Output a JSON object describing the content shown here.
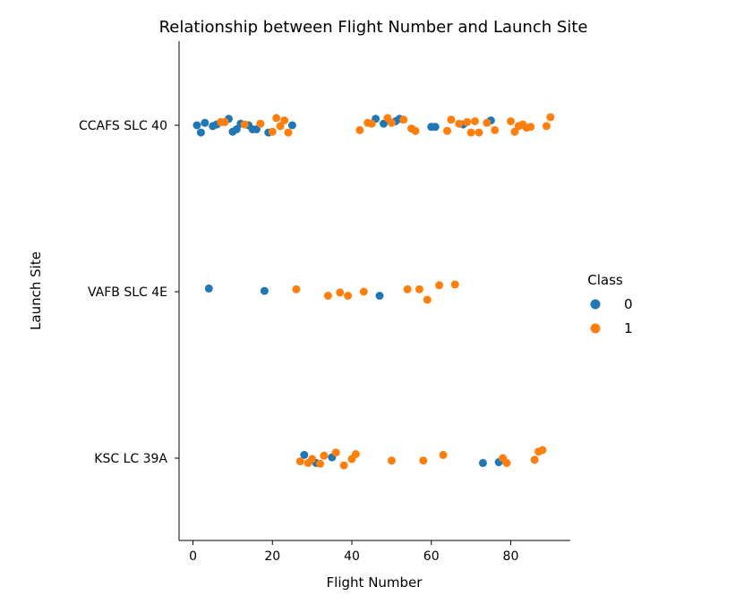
{
  "chart_data": {
    "type": "scatter",
    "title": "Relationship between Flight Number and Launch Site",
    "xlabel": "Flight Number",
    "ylabel": "Launch Site",
    "xlim": [
      -3.5,
      95
    ],
    "xticks": [
      0,
      20,
      40,
      60,
      80
    ],
    "categories": [
      "CCAFS SLC 40",
      "VAFB SLC 4E",
      "KSC LC 39A"
    ],
    "legend": {
      "title": "Class",
      "placement": "right",
      "entries": [
        {
          "label": "0",
          "color": "#1f77b4"
        },
        {
          "label": "1",
          "color": "#ff7f0e"
        }
      ]
    },
    "series": [
      {
        "name": "0",
        "color": "#1f77b4",
        "points": [
          {
            "x": 1,
            "site": "CCAFS SLC 40",
            "jitter": 0.0
          },
          {
            "x": 2,
            "site": "CCAFS SLC 40",
            "jitter": -0.09
          },
          {
            "x": 3,
            "site": "CCAFS SLC 40",
            "jitter": 0.03
          },
          {
            "x": 5,
            "site": "CCAFS SLC 40",
            "jitter": -0.01
          },
          {
            "x": 6,
            "site": "CCAFS SLC 40",
            "jitter": 0.01
          },
          {
            "x": 9,
            "site": "CCAFS SLC 40",
            "jitter": 0.08
          },
          {
            "x": 10,
            "site": "CCAFS SLC 40",
            "jitter": -0.08
          },
          {
            "x": 11,
            "site": "CCAFS SLC 40",
            "jitter": -0.05
          },
          {
            "x": 12,
            "site": "CCAFS SLC 40",
            "jitter": 0.02
          },
          {
            "x": 14,
            "site": "CCAFS SLC 40",
            "jitter": 0.0
          },
          {
            "x": 15,
            "site": "CCAFS SLC 40",
            "jitter": -0.05
          },
          {
            "x": 16,
            "site": "CCAFS SLC 40",
            "jitter": -0.05
          },
          {
            "x": 19,
            "site": "CCAFS SLC 40",
            "jitter": -0.09
          },
          {
            "x": 25,
            "site": "CCAFS SLC 40",
            "jitter": 0.0
          },
          {
            "x": 46,
            "site": "CCAFS SLC 40",
            "jitter": 0.08
          },
          {
            "x": 48,
            "site": "CCAFS SLC 40",
            "jitter": 0.02
          },
          {
            "x": 51,
            "site": "CCAFS SLC 40",
            "jitter": 0.05
          },
          {
            "x": 52,
            "site": "CCAFS SLC 40",
            "jitter": 0.08
          },
          {
            "x": 60,
            "site": "CCAFS SLC 40",
            "jitter": -0.02
          },
          {
            "x": 61,
            "site": "CCAFS SLC 40",
            "jitter": -0.02
          },
          {
            "x": 68,
            "site": "CCAFS SLC 40",
            "jitter": 0.01
          },
          {
            "x": 75,
            "site": "CCAFS SLC 40",
            "jitter": 0.06
          },
          {
            "x": 4,
            "site": "VAFB SLC 4E",
            "jitter": 0.04
          },
          {
            "x": 18,
            "site": "VAFB SLC 4E",
            "jitter": 0.01
          },
          {
            "x": 47,
            "site": "VAFB SLC 4E",
            "jitter": -0.05
          },
          {
            "x": 28,
            "site": "KSC LC 39A",
            "jitter": 0.04
          },
          {
            "x": 31,
            "site": "KSC LC 39A",
            "jitter": -0.06
          },
          {
            "x": 35,
            "site": "KSC LC 39A",
            "jitter": 0.01
          },
          {
            "x": 73,
            "site": "KSC LC 39A",
            "jitter": -0.06
          },
          {
            "x": 77,
            "site": "KSC LC 39A",
            "jitter": -0.05
          }
        ]
      },
      {
        "name": "1",
        "color": "#ff7f0e",
        "points": [
          {
            "x": 7,
            "site": "CCAFS SLC 40",
            "jitter": 0.04
          },
          {
            "x": 8,
            "site": "CCAFS SLC 40",
            "jitter": 0.04
          },
          {
            "x": 13,
            "site": "CCAFS SLC 40",
            "jitter": 0.01
          },
          {
            "x": 17,
            "site": "CCAFS SLC 40",
            "jitter": 0.02
          },
          {
            "x": 20,
            "site": "CCAFS SLC 40",
            "jitter": -0.08
          },
          {
            "x": 21,
            "site": "CCAFS SLC 40",
            "jitter": 0.09
          },
          {
            "x": 22,
            "site": "CCAFS SLC 40",
            "jitter": -0.01
          },
          {
            "x": 23,
            "site": "CCAFS SLC 40",
            "jitter": 0.06
          },
          {
            "x": 24,
            "site": "CCAFS SLC 40",
            "jitter": -0.09
          },
          {
            "x": 42,
            "site": "CCAFS SLC 40",
            "jitter": -0.06
          },
          {
            "x": 44,
            "site": "CCAFS SLC 40",
            "jitter": 0.03
          },
          {
            "x": 45,
            "site": "CCAFS SLC 40",
            "jitter": 0.02
          },
          {
            "x": 49,
            "site": "CCAFS SLC 40",
            "jitter": 0.09
          },
          {
            "x": 50,
            "site": "CCAFS SLC 40",
            "jitter": 0.03
          },
          {
            "x": 53,
            "site": "CCAFS SLC 40",
            "jitter": 0.07
          },
          {
            "x": 55,
            "site": "CCAFS SLC 40",
            "jitter": -0.04
          },
          {
            "x": 56,
            "site": "CCAFS SLC 40",
            "jitter": -0.07
          },
          {
            "x": 64,
            "site": "CCAFS SLC 40",
            "jitter": -0.07
          },
          {
            "x": 65,
            "site": "CCAFS SLC 40",
            "jitter": 0.07
          },
          {
            "x": 67,
            "site": "CCAFS SLC 40",
            "jitter": 0.02
          },
          {
            "x": 69,
            "site": "CCAFS SLC 40",
            "jitter": 0.04
          },
          {
            "x": 70,
            "site": "CCAFS SLC 40",
            "jitter": -0.09
          },
          {
            "x": 71,
            "site": "CCAFS SLC 40",
            "jitter": 0.05
          },
          {
            "x": 72,
            "site": "CCAFS SLC 40",
            "jitter": -0.09
          },
          {
            "x": 74,
            "site": "CCAFS SLC 40",
            "jitter": 0.03
          },
          {
            "x": 76,
            "site": "CCAFS SLC 40",
            "jitter": -0.06
          },
          {
            "x": 80,
            "site": "CCAFS SLC 40",
            "jitter": 0.05
          },
          {
            "x": 81,
            "site": "CCAFS SLC 40",
            "jitter": -0.08
          },
          {
            "x": 82,
            "site": "CCAFS SLC 40",
            "jitter": -0.01
          },
          {
            "x": 83,
            "site": "CCAFS SLC 40",
            "jitter": 0.01
          },
          {
            "x": 84,
            "site": "CCAFS SLC 40",
            "jitter": -0.03
          },
          {
            "x": 85,
            "site": "CCAFS SLC 40",
            "jitter": -0.02
          },
          {
            "x": 89,
            "site": "CCAFS SLC 40",
            "jitter": -0.01
          },
          {
            "x": 90,
            "site": "CCAFS SLC 40",
            "jitter": 0.1
          },
          {
            "x": 26,
            "site": "VAFB SLC 4E",
            "jitter": 0.03
          },
          {
            "x": 34,
            "site": "VAFB SLC 4E",
            "jitter": -0.05
          },
          {
            "x": 37,
            "site": "VAFB SLC 4E",
            "jitter": -0.01
          },
          {
            "x": 39,
            "site": "VAFB SLC 4E",
            "jitter": -0.05
          },
          {
            "x": 43,
            "site": "VAFB SLC 4E",
            "jitter": 0.0
          },
          {
            "x": 54,
            "site": "VAFB SLC 4E",
            "jitter": 0.03
          },
          {
            "x": 57,
            "site": "VAFB SLC 4E",
            "jitter": 0.03
          },
          {
            "x": 59,
            "site": "VAFB SLC 4E",
            "jitter": -0.1
          },
          {
            "x": 62,
            "site": "VAFB SLC 4E",
            "jitter": 0.08
          },
          {
            "x": 66,
            "site": "VAFB SLC 4E",
            "jitter": 0.09
          },
          {
            "x": 27,
            "site": "KSC LC 39A",
            "jitter": -0.04
          },
          {
            "x": 29,
            "site": "KSC LC 39A",
            "jitter": -0.06
          },
          {
            "x": 30,
            "site": "KSC LC 39A",
            "jitter": -0.01
          },
          {
            "x": 32,
            "site": "KSC LC 39A",
            "jitter": -0.07
          },
          {
            "x": 33,
            "site": "KSC LC 39A",
            "jitter": 0.03
          },
          {
            "x": 36,
            "site": "KSC LC 39A",
            "jitter": 0.07
          },
          {
            "x": 38,
            "site": "KSC LC 39A",
            "jitter": -0.09
          },
          {
            "x": 40,
            "site": "KSC LC 39A",
            "jitter": -0.01
          },
          {
            "x": 41,
            "site": "KSC LC 39A",
            "jitter": 0.05
          },
          {
            "x": 50,
            "site": "KSC LC 39A",
            "jitter": -0.03
          },
          {
            "x": 58,
            "site": "KSC LC 39A",
            "jitter": -0.03
          },
          {
            "x": 63,
            "site": "KSC LC 39A",
            "jitter": 0.04
          },
          {
            "x": 78,
            "site": "KSC LC 39A",
            "jitter": -0.0
          },
          {
            "x": 79,
            "site": "KSC LC 39A",
            "jitter": -0.06
          },
          {
            "x": 86,
            "site": "KSC LC 39A",
            "jitter": -0.02
          },
          {
            "x": 87,
            "site": "KSC LC 39A",
            "jitter": 0.08
          },
          {
            "x": 88,
            "site": "KSC LC 39A",
            "jitter": 0.1
          }
        ]
      }
    ]
  }
}
